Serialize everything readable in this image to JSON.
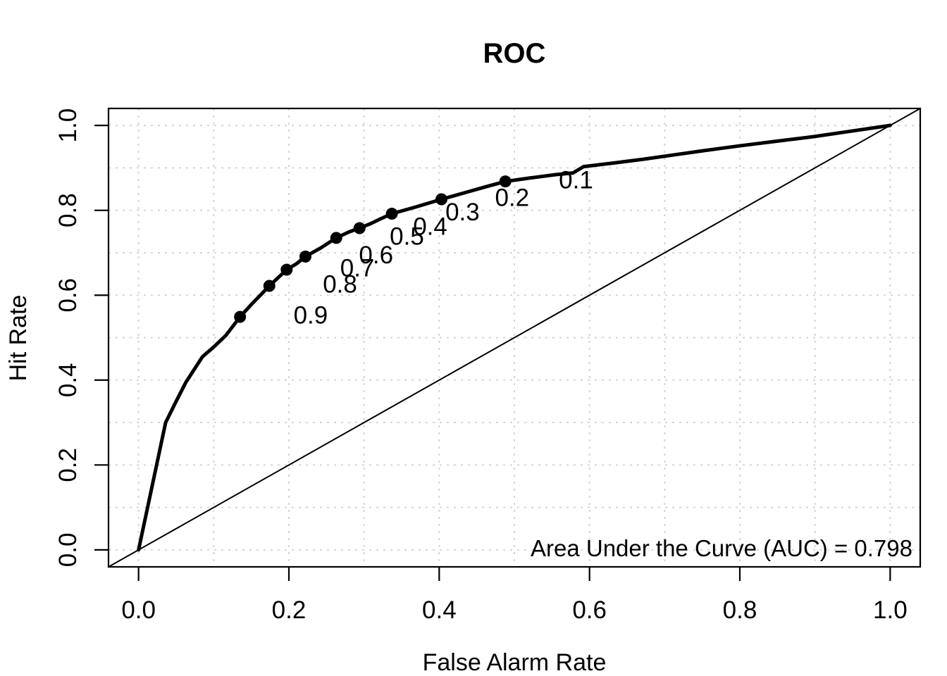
{
  "chart_data": {
    "type": "line",
    "title": "ROC",
    "xlabel": "False Alarm Rate",
    "ylabel": "Hit Rate",
    "xlim": [
      -0.04,
      1.04
    ],
    "ylim": [
      -0.04,
      1.04
    ],
    "x_ticks": {
      "values": [
        0.0,
        0.2,
        0.4,
        0.6,
        0.8,
        1.0
      ],
      "labels": [
        "0.0",
        "0.2",
        "0.4",
        "0.6",
        "0.8",
        "1.0"
      ]
    },
    "y_ticks": {
      "values": [
        0.0,
        0.2,
        0.4,
        0.6,
        0.8,
        1.0
      ],
      "labels": [
        "0.0",
        "0.2",
        "0.4",
        "0.6",
        "0.8",
        "1.0"
      ]
    },
    "grid": {
      "visible": true,
      "from": 0.0,
      "to": 1.0,
      "step": 0.1,
      "style": "dotted",
      "color": "#d5d5d5"
    },
    "series": [
      {
        "name": "roc-curve",
        "color": "#000000",
        "line_width": 5,
        "points": [
          [
            0.0,
            0.0
          ],
          [
            0.036,
            0.3
          ],
          [
            0.05,
            0.35
          ],
          [
            0.063,
            0.395
          ],
          [
            0.085,
            0.455
          ],
          [
            0.1,
            0.478
          ],
          [
            0.116,
            0.505
          ],
          [
            0.135,
            0.549
          ],
          [
            0.15,
            0.578
          ],
          [
            0.174,
            0.622
          ],
          [
            0.197,
            0.66
          ],
          [
            0.21,
            0.674
          ],
          [
            0.222,
            0.691
          ],
          [
            0.243,
            0.712
          ],
          [
            0.263,
            0.735
          ],
          [
            0.28,
            0.749
          ],
          [
            0.294,
            0.758
          ],
          [
            0.308,
            0.768
          ],
          [
            0.322,
            0.78
          ],
          [
            0.337,
            0.792
          ],
          [
            0.369,
            0.808
          ],
          [
            0.403,
            0.826
          ],
          [
            0.435,
            0.842
          ],
          [
            0.463,
            0.856
          ],
          [
            0.488,
            0.868
          ],
          [
            0.52,
            0.876
          ],
          [
            0.555,
            0.884
          ],
          [
            0.578,
            0.888
          ],
          [
            0.592,
            0.903
          ],
          [
            0.63,
            0.911
          ],
          [
            0.67,
            0.92
          ],
          [
            0.71,
            0.93
          ],
          [
            0.75,
            0.94
          ],
          [
            0.8,
            0.952
          ],
          [
            0.85,
            0.963
          ],
          [
            0.9,
            0.974
          ],
          [
            0.95,
            0.987
          ],
          [
            1.0,
            1.0
          ]
        ]
      },
      {
        "name": "chance-diagonal",
        "color": "#000000",
        "line_width": 2,
        "points": [
          [
            -0.04,
            -0.04
          ],
          [
            1.04,
            1.04
          ]
        ]
      }
    ],
    "threshold_points": {
      "marker": "filled-circle",
      "marker_radius": 8.5,
      "color": "#000000",
      "label_offset": {
        "x": 0.094,
        "y": 0.004
      },
      "points": [
        {
          "label": "0.9",
          "x": 0.135,
          "y": 0.549
        },
        {
          "label": "0.8",
          "x": 0.174,
          "y": 0.622
        },
        {
          "label": "0.7",
          "x": 0.197,
          "y": 0.66
        },
        {
          "label": "0.6",
          "x": 0.222,
          "y": 0.691
        },
        {
          "label": "0.5",
          "x": 0.263,
          "y": 0.735
        },
        {
          "label": "0.4",
          "x": 0.294,
          "y": 0.758
        },
        {
          "label": "0.3",
          "x": 0.337,
          "y": 0.792
        },
        {
          "label": "0.2",
          "x": 0.403,
          "y": 0.826
        },
        {
          "label": "0.1",
          "x": 0.488,
          "y": 0.868
        }
      ]
    },
    "auc": 0.798,
    "auc_annotation": {
      "text": "Area Under the Curve (AUC) = 0.798",
      "x": 1.03,
      "y": 0.0,
      "anchor": "end"
    },
    "legend_position": "none"
  },
  "colors": {
    "background": "#ffffff",
    "foreground": "#000000",
    "grid": "#d5d5d5"
  }
}
